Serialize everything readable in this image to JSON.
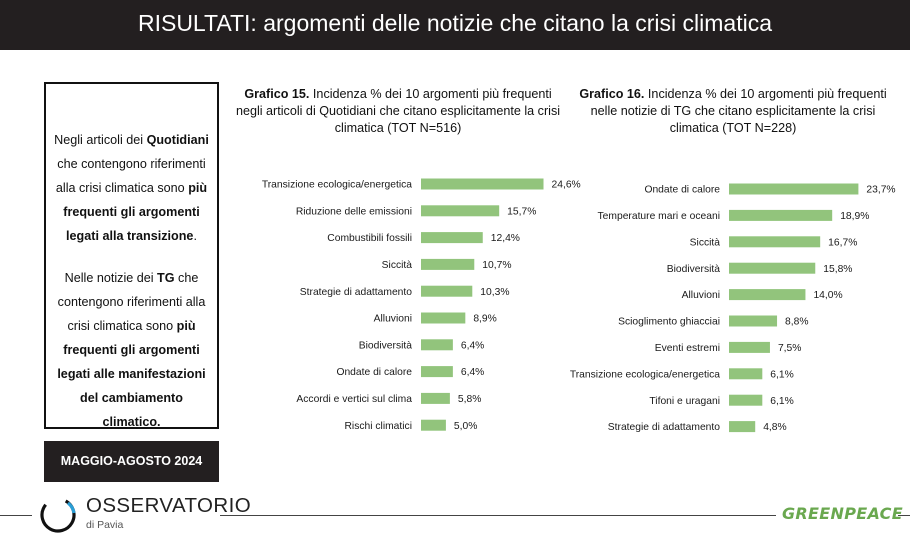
{
  "header": {
    "title": "RISULTATI: argomenti delle notizie che citano la crisi climatica"
  },
  "summary": {
    "p1": {
      "a": "Negli articoli dei ",
      "b": "Quotidiani",
      "c": " che contengono riferimenti alla crisi climatica sono ",
      "d": "più frequenti gli argomenti legati alla transizione",
      "e": "."
    },
    "p2": {
      "a": "Nelle notizie dei ",
      "b": "TG",
      "c": " che contengono riferimenti alla crisi climatica sono ",
      "d": "più frequenti gli argomenti legati alle manifestazioni del cambiamento climatico."
    }
  },
  "period": "MAGGIO-AGOSTO 2024",
  "footer": {
    "logo_name": "OSSERVATORIO",
    "logo_sub": "di Pavia",
    "brand": "GREENPEACE"
  },
  "colors": {
    "bar": "#92c47c",
    "title_bg": "#231f20",
    "brand": "#6aa84f"
  },
  "chart_data": [
    {
      "type": "bar",
      "orientation": "horizontal",
      "caption_bold": "Grafico 15.",
      "caption_rest": " Incidenza % dei 10 argomenti più frequenti negli articoli di Quotidiani che citano esplicitamente la crisi climatica (TOT N=516)",
      "categories": [
        "Transizione ecologica/energetica",
        "Riduzione delle emissioni",
        "Combustibili fossili",
        "Siccità",
        "Strategie di adattamento",
        "Alluvioni",
        "Biodiversità",
        "Ondate di calore",
        "Accordi e vertici sul clima",
        "Rischi climatici"
      ],
      "values": [
        24.6,
        15.7,
        12.4,
        10.7,
        10.3,
        8.9,
        6.4,
        6.4,
        5.8,
        5.0
      ],
      "value_labels": [
        "24,6%",
        "15,7%",
        "12,4%",
        "10,7%",
        "10,3%",
        "8,9%",
        "6,4%",
        "6,4%",
        "5,8%",
        "5,0%"
      ]
    },
    {
      "type": "bar",
      "orientation": "horizontal",
      "caption_bold": "Grafico 16.",
      "caption_rest": " Incidenza % dei 10 argomenti più frequenti nelle notizie di TG che citano esplicitamente la crisi climatica (TOT N=228)",
      "categories": [
        "Ondate di calore",
        "Temperature mari e oceani",
        "Siccità",
        "Biodiversità",
        "Alluvioni",
        "Scioglimento ghiacciai",
        "Eventi estremi",
        "Transizione ecologica/energetica",
        "Tifoni e uragani",
        "Strategie di adattamento"
      ],
      "values": [
        23.7,
        18.9,
        16.7,
        15.8,
        14.0,
        8.8,
        7.5,
        6.1,
        6.1,
        4.8
      ],
      "value_labels": [
        "23,7%",
        "18,9%",
        "16,7%",
        "15,8%",
        "14,0%",
        "8,8%",
        "7,5%",
        "6,1%",
        "6,1%",
        "4,8%"
      ]
    }
  ]
}
